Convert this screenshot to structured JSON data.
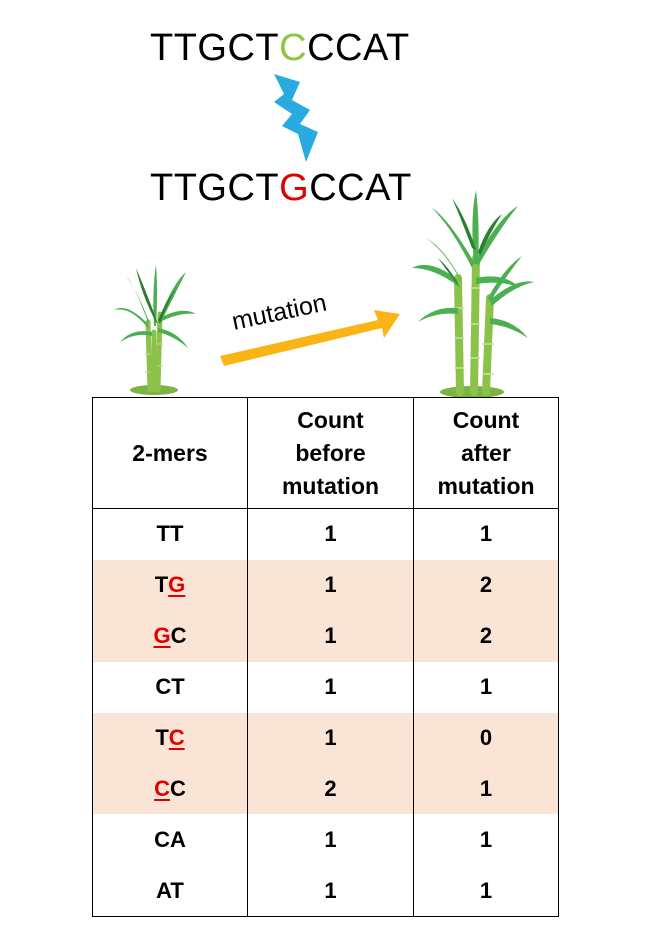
{
  "sequence_before": {
    "prefix": "TTGCT",
    "mutated_base": "C",
    "suffix": "CCAT",
    "mutated_color": "#8dc63f"
  },
  "sequence_after": {
    "prefix": "TTGCT",
    "mutated_base": "G",
    "suffix": "CCAT",
    "mutated_color": "#e00000"
  },
  "arrow_label": "mutation",
  "colors": {
    "bolt": "#29abe2",
    "arrow": "#fbb416",
    "highlight_row": "#f9e4d6",
    "mutation_text": "#e00000"
  },
  "icons": {
    "bolt": "lightning-bolt-icon",
    "plant_small": "small-sugarcane-plant-icon",
    "plant_big": "large-sugarcane-plant-icon"
  },
  "table": {
    "headers": {
      "kmer": "2-mers",
      "before": [
        "Count",
        "before",
        "mutation"
      ],
      "after": [
        "Count",
        "after",
        "mutation"
      ]
    },
    "rows": [
      {
        "kmer_a": "TT",
        "kmer_a_mut": false,
        "kmer_b": "",
        "kmer_b_mut": false,
        "before": 1,
        "after": 1,
        "highlight": false
      },
      {
        "kmer_a": "T",
        "kmer_a_mut": false,
        "kmer_b": "G",
        "kmer_b_mut": true,
        "before": 1,
        "after": 2,
        "highlight": true
      },
      {
        "kmer_a": "G",
        "kmer_a_mut": true,
        "kmer_b": "C",
        "kmer_b_mut": false,
        "before": 1,
        "after": 2,
        "highlight": true
      },
      {
        "kmer_a": "CT",
        "kmer_a_mut": false,
        "kmer_b": "",
        "kmer_b_mut": false,
        "before": 1,
        "after": 1,
        "highlight": false
      },
      {
        "kmer_a": "T",
        "kmer_a_mut": false,
        "kmer_b": "C",
        "kmer_b_mut": true,
        "before": 1,
        "after": 0,
        "highlight": true
      },
      {
        "kmer_a": "C",
        "kmer_a_mut": true,
        "kmer_b": "C",
        "kmer_b_mut": false,
        "before": 2,
        "after": 1,
        "highlight": true
      },
      {
        "kmer_a": "CA",
        "kmer_a_mut": false,
        "kmer_b": "",
        "kmer_b_mut": false,
        "before": 1,
        "after": 1,
        "highlight": false
      },
      {
        "kmer_a": "AT",
        "kmer_a_mut": false,
        "kmer_b": "",
        "kmer_b_mut": false,
        "before": 1,
        "after": 1,
        "highlight": false
      }
    ]
  }
}
